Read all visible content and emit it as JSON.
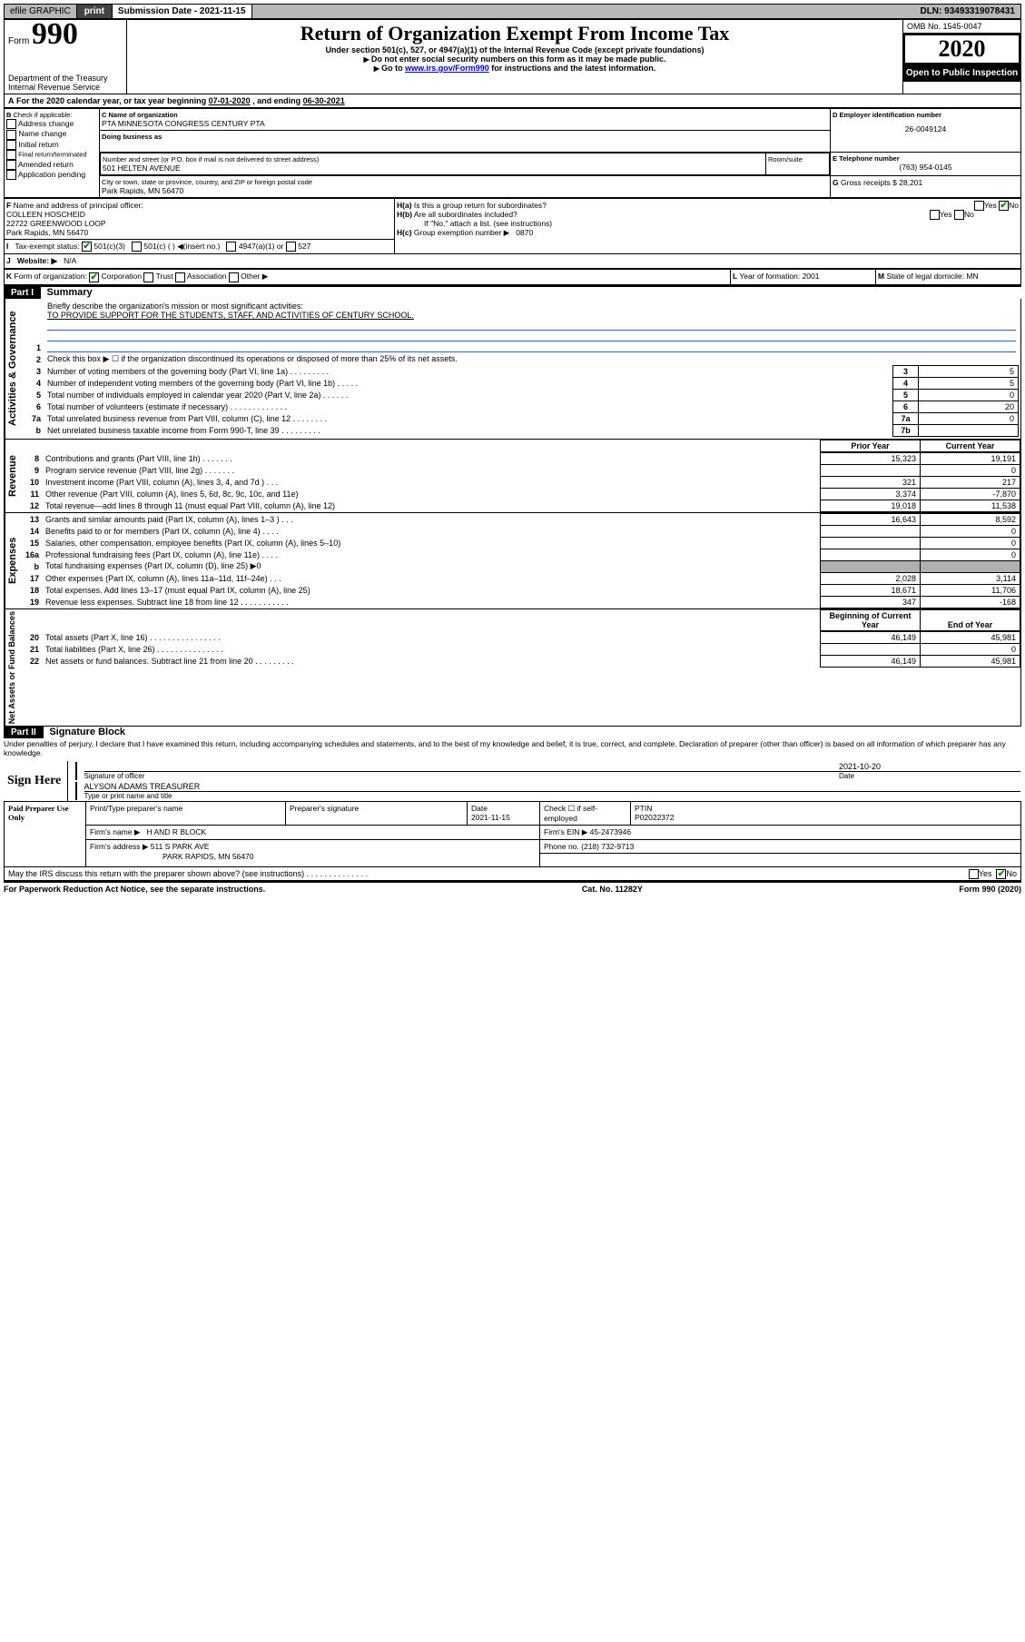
{
  "topbar": {
    "efile": "efile GRAPHIC",
    "print_btn": "print",
    "sub_label": "Submission Date - 2021-11-15",
    "dln": "DLN: 93493319078431"
  },
  "header": {
    "form_label": "Form",
    "form_number": "990",
    "dept1": "Department of the Treasury",
    "dept2": "Internal Revenue Service",
    "title": "Return of Organization Exempt From Income Tax",
    "subtitle": "Under section 501(c), 527, or 4947(a)(1) of the Internal Revenue Code (except private foundations)",
    "note1": "Do not enter social security numbers on this form as it may be made public.",
    "note2_pre": "Go to ",
    "note2_link": "www.irs.gov/Form990",
    "note2_post": " for instructions and the latest information.",
    "omb": "OMB No. 1545-0047",
    "year": "2020",
    "open": "Open to Public Inspection"
  },
  "A": {
    "text": "For the 2020 calendar year, or tax year beginning ",
    "begin": "07-01-2020",
    "mid": " , and ending ",
    "end": "06-30-2021"
  },
  "B": {
    "label": "Check if applicable:",
    "items": [
      "Address change",
      "Name change",
      "Initial return",
      "Final return/terminated",
      "Amended return",
      "Application pending"
    ]
  },
  "C": {
    "name_label": "C Name of organization",
    "name": "PTA MINNESOTA CONGRESS CENTURY PTA",
    "dba_label": "Doing business as",
    "addr_label": "Number and street (or P.O. box if mail is not delivered to street address)",
    "addr": "501 HELTEN AVENUE",
    "room_label": "Room/suite",
    "city_label": "City or town, state or province, country, and ZIP or foreign postal code",
    "city": "Park Rapids, MN  56470"
  },
  "D": {
    "label": "D Employer identification number",
    "val": "26-0049124"
  },
  "E": {
    "label": "E Telephone number",
    "val": "(763) 954-0145"
  },
  "G": {
    "label": "G",
    "text": "Gross receipts $",
    "val": "28,201"
  },
  "F": {
    "label": "F",
    "text": "Name and address of principal officer:",
    "name": "COLLEEN HOSCHEID",
    "addr1": "22722 GREENWOOD LOOP",
    "addr2": "Park Rapids, MN  56470"
  },
  "H": {
    "a": "Is this a group return for subordinates?",
    "b": "Are all subordinates included?",
    "b_note": "If \"No,\" attach a list. (see instructions)",
    "c_label": "Group exemption number ▶",
    "c_val": "0870",
    "yes": "Yes",
    "no": "No"
  },
  "I": {
    "label": "Tax-exempt status:",
    "o1": "501(c)(3)",
    "o2": "501(c) ( ) ◀(insert no.)",
    "o3": "4947(a)(1) or",
    "o4": "527"
  },
  "J": {
    "label": "Website: ▶",
    "val": "N/A"
  },
  "K": {
    "label": "Form of organization:",
    "o1": "Corporation",
    "o2": "Trust",
    "o3": "Association",
    "o4": "Other ▶"
  },
  "L": {
    "label": "L",
    "text": "Year of formation:",
    "val": "2001"
  },
  "M": {
    "label": "M",
    "text": "State of legal domicile:",
    "val": "MN"
  },
  "part1": {
    "hdr": "Part I",
    "title": "Summary",
    "q1_label": "Briefly describe the organization's mission or most significant activities:",
    "q1_val": "TO PROVIDE SUPPORT FOR THE STUDENTS, STAFF, AND ACTIVITIES OF CENTURY SCHOOL.",
    "q2": "Check this box ▶ ☐  if the organization discontinued its operations or disposed of more than 25% of its net assets.",
    "side_gov": "Activities & Governance",
    "side_rev": "Revenue",
    "side_exp": "Expenses",
    "side_net": "Net Assets or Fund Balances",
    "col_prior": "Prior Year",
    "col_curr": "Current Year",
    "col_beg": "Beginning of Current Year",
    "col_end": "End of Year",
    "lines_gov": [
      {
        "n": "3",
        "d": "Number of voting members of the governing body (Part VI, line 1a)  .    .    .    .    .    .    .    .    .",
        "box": "3",
        "v": "5"
      },
      {
        "n": "4",
        "d": "Number of independent voting members of the governing body (Part VI, line 1b)  .    .    .    .    .",
        "box": "4",
        "v": "5"
      },
      {
        "n": "5",
        "d": "Total number of individuals employed in calendar year 2020 (Part V, line 2a)  .    .    .    .    .    .",
        "box": "5",
        "v": "0"
      },
      {
        "n": "6",
        "d": "Total number of volunteers (estimate if necessary)  .    .    .    .    .    .    .    .    .    .    .    .    .",
        "box": "6",
        "v": "20"
      },
      {
        "n": "7a",
        "d": "Total unrelated business revenue from Part VIII, column (C), line 12  .    .    .    .    .    .    .    .",
        "box": "7a",
        "v": "0"
      },
      {
        "n": "b",
        "d": "Net unrelated business taxable income from Form 990-T, line 39  .    .    .    .    .    .    .    .    .",
        "box": "7b",
        "v": ""
      }
    ],
    "lines_rev": [
      {
        "n": "8",
        "d": "Contributions and grants (Part VIII, line 1h)  .    .    .    .    .    .    .",
        "p": "15,323",
        "c": "19,191"
      },
      {
        "n": "9",
        "d": "Program service revenue (Part VIII, line 2g)  .    .    .    .    .    .    .",
        "p": "",
        "c": "0"
      },
      {
        "n": "10",
        "d": "Investment income (Part VIII, column (A), lines 3, 4, and 7d )  .    .    .",
        "p": "321",
        "c": "217"
      },
      {
        "n": "11",
        "d": "Other revenue (Part VIII, column (A), lines 5, 6d, 8c, 9c, 10c, and 11e)",
        "p": "3,374",
        "c": "-7,870"
      },
      {
        "n": "12",
        "d": "Total revenue—add lines 8 through 11 (must equal Part VIII, column (A), line 12)",
        "p": "19,018",
        "c": "11,538"
      }
    ],
    "lines_exp": [
      {
        "n": "13",
        "d": "Grants and similar amounts paid (Part IX, column (A), lines 1–3 )  .    .    .",
        "p": "16,643",
        "c": "8,592"
      },
      {
        "n": "14",
        "d": "Benefits paid to or for members (Part IX, column (A), line 4)  .    .    .    .",
        "p": "",
        "c": "0"
      },
      {
        "n": "15",
        "d": "Salaries, other compensation, employee benefits (Part IX, column (A), lines 5–10)",
        "p": "",
        "c": "0"
      },
      {
        "n": "16a",
        "d": "Professional fundraising fees (Part IX, column (A), line 11e)  .    .    .    .",
        "p": "",
        "c": "0"
      },
      {
        "n": "b",
        "d": "Total fundraising expenses (Part IX, column (D), line 25) ▶0",
        "p": "__gray__",
        "c": "__gray__"
      },
      {
        "n": "17",
        "d": "Other expenses (Part IX, column (A), lines 11a–11d, 11f–24e)  .    .    .",
        "p": "2,028",
        "c": "3,114"
      },
      {
        "n": "18",
        "d": "Total expenses. Add lines 13–17 (must equal Part IX, column (A), line 25)",
        "p": "18,671",
        "c": "11,706"
      },
      {
        "n": "19",
        "d": "Revenue less expenses. Subtract line 18 from line 12  .    .    .    .    .    .    .    .    .    .    .",
        "p": "347",
        "c": "-168"
      }
    ],
    "lines_net": [
      {
        "n": "20",
        "d": "Total assets (Part X, line 16)  .    .    .    .    .    .    .    .    .    .    .    .    .    .    .    .",
        "p": "46,149",
        "c": "45,981"
      },
      {
        "n": "21",
        "d": "Total liabilities (Part X, line 26)  .    .    .    .    .    .    .    .    .    .    .    .    .    .    .",
        "p": "",
        "c": "0"
      },
      {
        "n": "22",
        "d": "Net assets or fund balances. Subtract line 21 from line 20  .    .    .    .    .    .    .    .    .",
        "p": "46,149",
        "c": "45,981"
      }
    ]
  },
  "part2": {
    "hdr": "Part II",
    "title": "Signature Block",
    "penalty": "Under penalties of perjury, I declare that I have examined this return, including accompanying schedules and statements, and to the best of my knowledge and belief, it is true, correct, and complete. Declaration of preparer (other than officer) is based on all information of which preparer has any knowledge.",
    "sign_here": "Sign Here",
    "sig_officer": "Signature of officer",
    "sig_date_lbl": "Date",
    "sig_date": "2021-10-20",
    "officer_name": "ALYSON ADAMS TREASURER",
    "type_name": "Type or print name and title",
    "paid": "Paid Preparer Use Only",
    "prep_name_lbl": "Print/Type preparer's name",
    "prep_sig_lbl": "Preparer's signature",
    "date_lbl": "Date",
    "date_val": "2021-11-15",
    "check_lbl": "Check ☐ if self-employed",
    "ptin_lbl": "PTIN",
    "ptin": "P02022372",
    "firm_name_lbl": "Firm's name    ▶",
    "firm_name": "H AND R BLOCK",
    "firm_ein_lbl": "Firm's EIN ▶",
    "firm_ein": "45-2473946",
    "firm_addr_lbl": "Firm's address ▶",
    "firm_addr1": "511 S PARK AVE",
    "firm_addr2": "PARK RAPIDS, MN  56470",
    "phone_lbl": "Phone no.",
    "phone": "(218) 732-9713",
    "discuss": "May the IRS discuss this return with the preparer shown above? (see instructions)  .    .    .    .    .    .    .    .    .    .    .    .    .    .",
    "yes": "Yes",
    "no": "No"
  },
  "footer": {
    "left": "For Paperwork Reduction Act Notice, see the separate instructions.",
    "mid": "Cat. No. 11282Y",
    "right": "Form 990 (2020)"
  },
  "colors": {
    "rule_blue": "#2b5fc4"
  }
}
